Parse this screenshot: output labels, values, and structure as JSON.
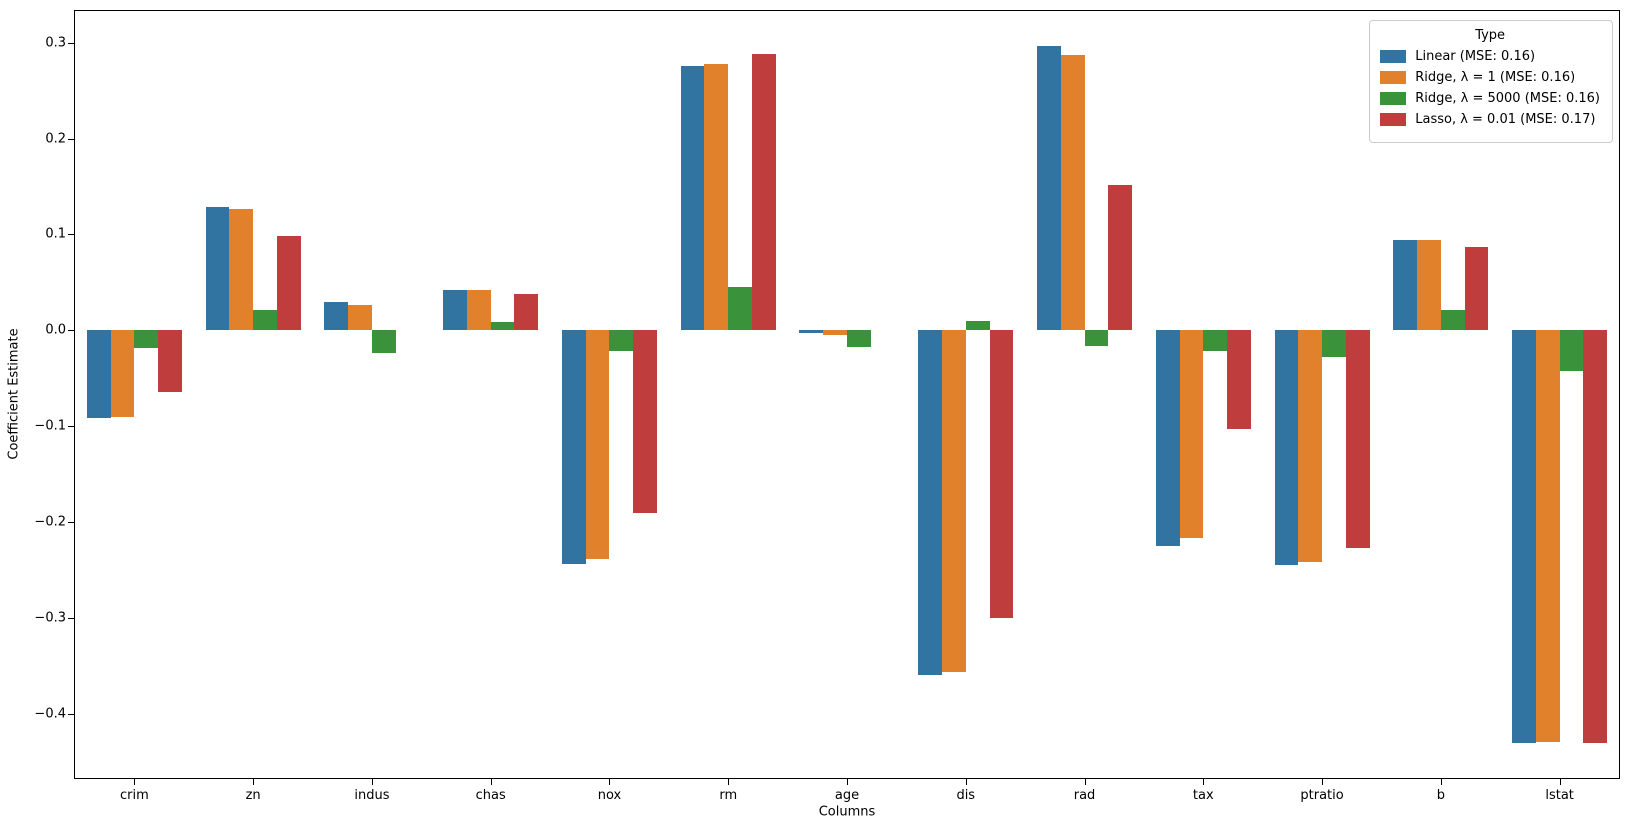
{
  "chart_data": {
    "type": "bar",
    "title": "",
    "xlabel": "Columns",
    "ylabel": "Coefficient Estimate",
    "categories": [
      "crim",
      "zn",
      "indus",
      "chas",
      "nox",
      "rm",
      "age",
      "dis",
      "rad",
      "tax",
      "ptratio",
      "b",
      "lstat"
    ],
    "series": [
      {
        "name": "Linear (MSE: 0.16)",
        "color": "#3274a1",
        "values": [
          -0.092,
          0.129,
          0.029,
          0.042,
          -0.244,
          0.276,
          -0.003,
          -0.36,
          0.297,
          -0.225,
          -0.245,
          0.094,
          -0.43
        ]
      },
      {
        "name": "Ridge, λ = 1 (MSE: 0.16)",
        "color": "#e1812c",
        "values": [
          -0.091,
          0.127,
          0.026,
          0.042,
          -0.239,
          0.278,
          -0.005,
          -0.356,
          0.287,
          -0.217,
          -0.242,
          0.094,
          -0.429
        ]
      },
      {
        "name": "Ridge, λ = 5000 (MSE: 0.16)",
        "color": "#3a923a",
        "values": [
          -0.018,
          0.021,
          -0.024,
          0.009,
          -0.022,
          0.045,
          -0.017,
          0.01,
          -0.016,
          -0.022,
          -0.028,
          0.021,
          -0.043
        ]
      },
      {
        "name": "Lasso, λ = 0.01 (MSE: 0.17)",
        "color": "#c03d3d",
        "values": [
          -0.064,
          0.098,
          0.0,
          0.038,
          -0.191,
          0.288,
          0.0,
          -0.3,
          0.151,
          -0.103,
          -0.227,
          0.087,
          -0.431
        ]
      }
    ],
    "ylim": [
      -0.467,
      0.333
    ],
    "yticks": [
      -0.4,
      -0.3,
      -0.2,
      -0.1,
      0.0,
      0.1,
      0.2,
      0.3
    ],
    "grid": false,
    "legend": {
      "title": "Type",
      "position": "upper right"
    }
  }
}
